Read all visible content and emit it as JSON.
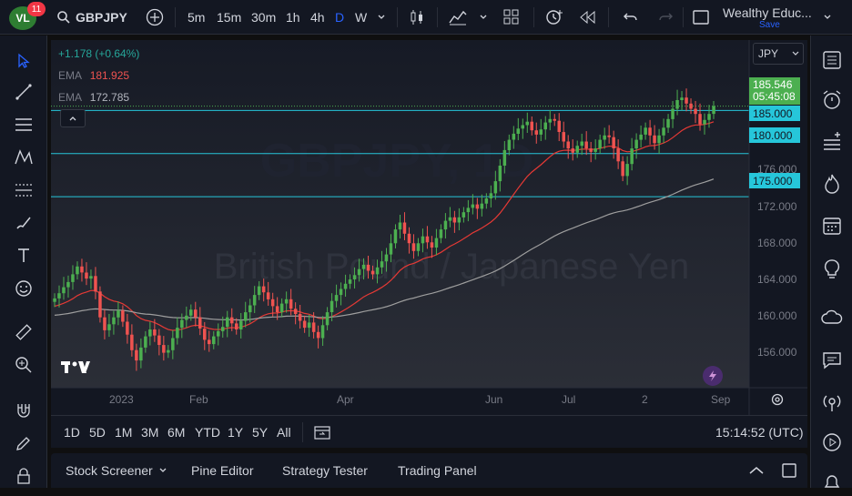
{
  "header": {
    "notifications_count": "11",
    "symbol": "GBPJPY",
    "timeframes": [
      "5m",
      "15m",
      "30m",
      "1h",
      "4h",
      "D",
      "W"
    ],
    "active_timeframe": "D",
    "layout_name": "Wealthy Educ...",
    "save_label": "Save"
  },
  "legend": {
    "change": "+1.178 (+0.64%)",
    "ema1_label": "EMA",
    "ema1_value": "181.925",
    "ema2_label": "EMA",
    "ema2_value": "172.785",
    "collapse_icon": "chevron-up-icon"
  },
  "watermark": {
    "symbol": "GBPJPY, 1D",
    "name": "British Pound / Japanese Yen"
  },
  "currency_selector": "JPY",
  "price_axis": {
    "labels": [
      "176.000",
      "172.000",
      "168.000",
      "164.000",
      "160.000",
      "156.000"
    ],
    "current_price": "185.546",
    "countdown": "05:45:08",
    "levels": [
      "185.000",
      "180.000",
      "175.000"
    ]
  },
  "time_axis": {
    "labels": [
      "2023",
      "Feb",
      "Apr",
      "Jun",
      "Jul",
      "2",
      "Sep"
    ]
  },
  "range_bar": {
    "ranges": [
      "1D",
      "5D",
      "1M",
      "3M",
      "6M",
      "YTD",
      "1Y",
      "5Y",
      "All"
    ],
    "clock": "15:14:52 (UTC)"
  },
  "panel_tabs": [
    "Stock Screener",
    "Pine Editor",
    "Strategy Tester",
    "Trading Panel"
  ],
  "colors": {
    "up": "#26a69a",
    "up_candle": "#4caf50",
    "down": "#ef5350",
    "ema_fast": "#e53935",
    "ema_slow": "#9e9e9e",
    "level_line": "#26c6da",
    "accent": "#2962ff"
  },
  "chart_data": {
    "type": "candlestick",
    "ylim": [
      152,
      190
    ],
    "horizontal_levels": [
      185.0,
      180.0,
      175.0
    ],
    "close_series": [
      163.2,
      163.8,
      164.5,
      165.1,
      166.0,
      166.9,
      166.2,
      165.5,
      165.8,
      164.0,
      161.0,
      159.5,
      160.2,
      161.0,
      161.8,
      160.5,
      159.0,
      157.2,
      156.0,
      157.5,
      158.8,
      159.6,
      158.9,
      157.8,
      156.9,
      157.2,
      158.6,
      159.8,
      160.7,
      161.2,
      161.9,
      161.0,
      159.7,
      158.4,
      157.9,
      158.8,
      159.4,
      159.9,
      161.0,
      160.3,
      159.6,
      160.6,
      161.6,
      162.4,
      163.6,
      164.6,
      163.9,
      163.1,
      162.3,
      161.6,
      162.6,
      163.1,
      162.0,
      161.4,
      160.6,
      159.8,
      160.4,
      159.3,
      158.6,
      160.1,
      161.6,
      162.9,
      163.6,
      164.3,
      164.9,
      165.4,
      165.9,
      166.6,
      167.1,
      166.4,
      166.0,
      166.8,
      167.5,
      168.3,
      169.6,
      171.2,
      172.0,
      170.7,
      169.6,
      168.7,
      169.6,
      170.4,
      169.7,
      169.1,
      170.2,
      171.2,
      172.2,
      172.6,
      172.0,
      172.6,
      173.2,
      173.7,
      174.1,
      173.6,
      174.2,
      174.8,
      175.4,
      176.8,
      178.6,
      180.4,
      181.6,
      182.3,
      182.9,
      183.3,
      183.7,
      182.7,
      182.2,
      182.8,
      183.6,
      184.0,
      183.8,
      182.5,
      181.4,
      180.6,
      180.1,
      180.9,
      181.4,
      180.6,
      180.2,
      180.6,
      181.6,
      182.1,
      181.9,
      180.6,
      179.1,
      177.4,
      178.8,
      180.6,
      181.6,
      182.2,
      183.0,
      182.1,
      181.2,
      182.1,
      183.0,
      184.0,
      185.2,
      186.2,
      186.5,
      185.8,
      185.2,
      184.6,
      183.4,
      183.9,
      184.6,
      185.5
    ],
    "ema_fast": "EMA 181.925",
    "ema_slow": "EMA 172.785"
  }
}
